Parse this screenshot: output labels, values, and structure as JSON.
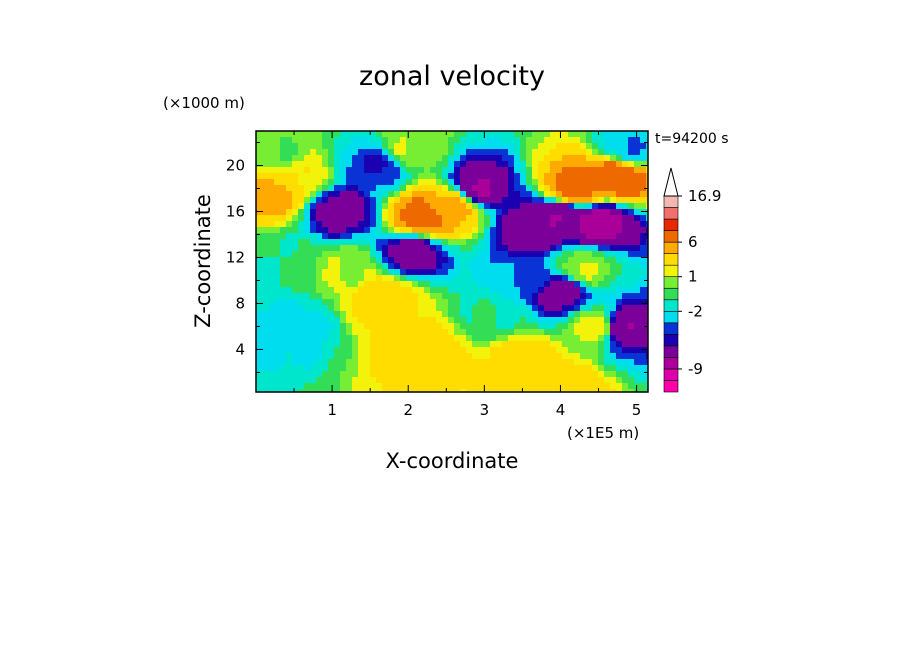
{
  "chart_data": {
    "type": "heatmap",
    "title": "zonal velocity",
    "xlabel": "X-coordinate",
    "ylabel": "Z-coordinate",
    "x_unit": "(×1E5 m)",
    "y_unit": "(×1000 m)",
    "time_label": "t=94200 s",
    "xlim": [
      0,
      5.15
    ],
    "ylim": [
      0.3,
      23
    ],
    "x_ticks": [
      1,
      2,
      3,
      4,
      5
    ],
    "y_ticks": [
      4,
      8,
      12,
      16,
      20
    ],
    "x_tick_labels": [
      "1",
      "2",
      "3",
      "4",
      "5"
    ],
    "y_tick_labels": [
      "4",
      "8",
      "12",
      "16",
      "20"
    ],
    "colorbar": {
      "labels": [
        "16.9",
        "6",
        "1",
        "-2",
        "-9"
      ],
      "levels": [
        -13,
        -11,
        -9,
        -7,
        -5,
        -4,
        -3,
        -2,
        -1,
        0,
        1,
        2,
        4,
        6,
        8,
        10,
        13,
        16.9
      ],
      "colors": [
        "#ff00aa",
        "#dd00aa",
        "#aa0099",
        "#7a0099",
        "#1a00b0",
        "#0a33d6",
        "#00ddee",
        "#00e6cc",
        "#33dd55",
        "#77ee33",
        "#f2f20a",
        "#ffdd00",
        "#ffaa00",
        "#ee6a00",
        "#e82a00",
        "#f07070",
        "#f4b8b0"
      ]
    },
    "field_features": [
      {
        "x": 0.2,
        "z": 17.5,
        "value": 5
      },
      {
        "x": 0.55,
        "z": 19,
        "value": 2
      },
      {
        "x": 1.6,
        "z": 20,
        "value": -4
      },
      {
        "x": 1.1,
        "z": 16,
        "value": -6
      },
      {
        "x": 2.2,
        "z": 15.5,
        "value": 7
      },
      {
        "x": 2.6,
        "z": 16.5,
        "value": 5
      },
      {
        "x": 2.05,
        "z": 12.5,
        "value": -6
      },
      {
        "x": 2.9,
        "z": 18,
        "value": -7
      },
      {
        "x": 3.6,
        "z": 14.5,
        "value": -6
      },
      {
        "x": 4.0,
        "z": 15.5,
        "value": -7
      },
      {
        "x": 4.5,
        "z": 15,
        "value": -8
      },
      {
        "x": 4.2,
        "z": 18,
        "value": 7
      },
      {
        "x": 4.75,
        "z": 19,
        "value": 8
      },
      {
        "x": 4.0,
        "z": 9,
        "value": -6
      },
      {
        "x": 4.8,
        "z": 6,
        "value": -7
      },
      {
        "x": 0.5,
        "z": 6,
        "value": -2.5
      },
      {
        "x": 1.7,
        "z": 8.5,
        "value": 3
      },
      {
        "x": 2.2,
        "z": 4,
        "value": 3
      },
      {
        "x": 3.5,
        "z": 3,
        "value": 3
      },
      {
        "x": 4.0,
        "z": 1,
        "value": 3
      },
      {
        "x": 4.5,
        "z": 6,
        "value": 2
      },
      {
        "x": 0.3,
        "z": 12,
        "value": -1
      },
      {
        "x": 1.2,
        "z": 11,
        "value": 1
      },
      {
        "x": 3.5,
        "z": 10,
        "value": -3
      },
      {
        "x": 3.1,
        "z": 7,
        "value": -1
      },
      {
        "x": 4.3,
        "z": 11,
        "value": 1
      },
      {
        "x": 4.9,
        "z": 21.5,
        "value": -3
      },
      {
        "x": 0.3,
        "z": 21,
        "value": 0
      },
      {
        "x": 2.0,
        "z": 21.5,
        "value": 1
      }
    ]
  }
}
